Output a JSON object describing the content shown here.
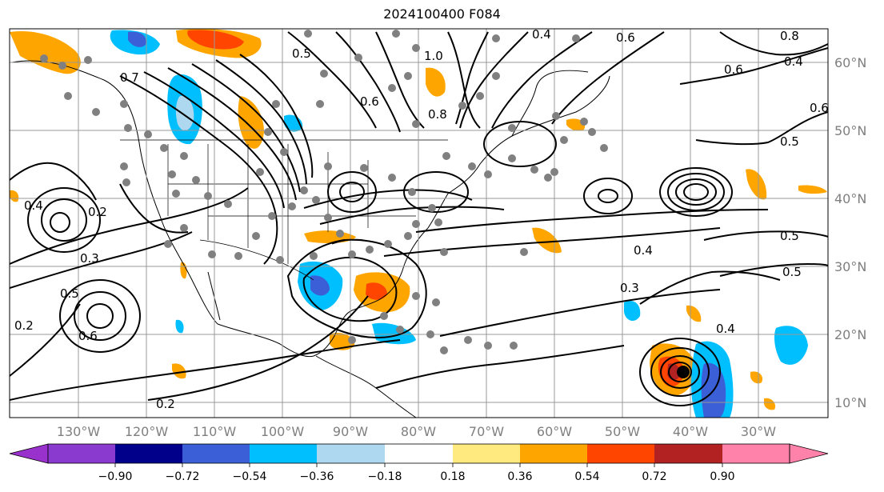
{
  "title": "2024100400 F084",
  "lon_labels": [
    "130°W",
    "120°W",
    "110°W",
    "100°W",
    "90°W",
    "80°W",
    "70°W",
    "60°W",
    "50°W",
    "40°W",
    "30°W"
  ],
  "lat_labels": [
    "60°N",
    "50°N",
    "40°N",
    "30°N",
    "20°N",
    "10°N"
  ],
  "contour_labels": [
    "0.4",
    "0.5",
    "0.6",
    "0.8",
    "1.0",
    "0.7",
    "0.6",
    "0.8",
    "0.4",
    "0.6",
    "0.5",
    "0.6",
    "0.4",
    "0.2",
    "0.3",
    "0.5",
    "0.2",
    "0.6",
    "0.5",
    "0.3",
    "0.4",
    "0.5",
    "0.4",
    "0.2"
  ],
  "colorbar": {
    "colors": [
      "#9932cc",
      "#8b3ad0",
      "#00008b",
      "#3b5fd6",
      "#00bfff",
      "#add8f0",
      "#ffffff",
      "#ffea80",
      "#ffa500",
      "#ff4500",
      "#b22222",
      "#ff82ab"
    ],
    "tick_labels": [
      "−0.90",
      "−0.72",
      "−0.54",
      "−0.36",
      "−0.18",
      "0.18",
      "0.36",
      "0.54",
      "0.72",
      "0.90"
    ]
  }
}
